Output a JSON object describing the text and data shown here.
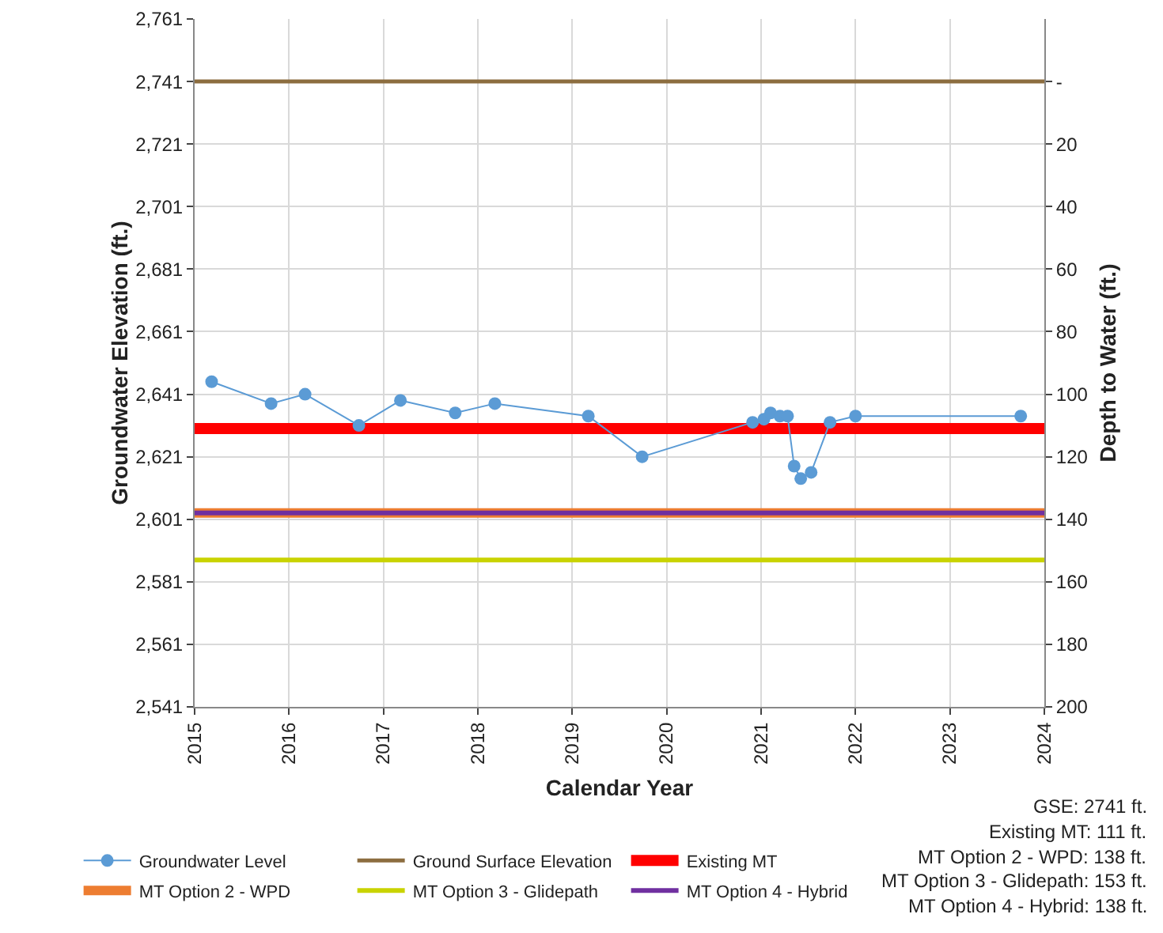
{
  "chart_data": {
    "type": "line",
    "xlabel": "Calendar Year",
    "ylabel": "Groundwater Elevation (ft.)",
    "y2label": "Depth to Water (ft.)",
    "series": [
      {
        "name": "Groundwater Level",
        "color": "#5b9bd5",
        "marker": "circle",
        "x": [
          2015.18,
          2015.81,
          2016.17,
          2016.74,
          2017.18,
          2017.76,
          2018.18,
          2019.17,
          2019.74,
          2020.91,
          2021.03,
          2021.1,
          2021.2,
          2021.28,
          2021.35,
          2021.42,
          2021.53,
          2021.73,
          2022.0,
          2023.75
        ],
        "values": [
          2645,
          2638,
          2641,
          2631,
          2639,
          2635,
          2638,
          2634,
          2621,
          2632,
          2633,
          2635,
          2634,
          2634,
          2618,
          2614,
          2616,
          2632,
          2634,
          2634
        ]
      },
      {
        "name": "Ground Surface Elevation",
        "color": "#8c6d3f",
        "marker": "none",
        "x": [
          2015,
          2024
        ],
        "values": [
          2741,
          2741
        ]
      },
      {
        "name": "Existing MT",
        "color": "#ff0000",
        "marker": "none",
        "x": [
          2015,
          2024
        ],
        "values": [
          2630,
          2630
        ]
      },
      {
        "name": "MT Option 2 - WPD",
        "color": "#ed7d31",
        "marker": "none",
        "x": [
          2015,
          2024
        ],
        "values": [
          2603,
          2603
        ]
      },
      {
        "name": "MT Option 3 - Glidepath",
        "color": "#c9d300",
        "marker": "none",
        "x": [
          2015,
          2024
        ],
        "values": [
          2588,
          2588
        ]
      },
      {
        "name": "MT Option 4 - Hybrid",
        "color": "#7030a0",
        "marker": "none",
        "x": [
          2015,
          2024
        ],
        "values": [
          2603,
          2603
        ]
      }
    ],
    "xlim": [
      2015,
      2024
    ],
    "xticks": [
      2015,
      2016,
      2017,
      2018,
      2019,
      2020,
      2021,
      2022,
      2023,
      2024
    ],
    "ylim": [
      2541,
      2761
    ],
    "yticks": [
      {
        "value": 2541,
        "label": "2,541"
      },
      {
        "value": 2561,
        "label": "2,561"
      },
      {
        "value": 2581,
        "label": "2,581"
      },
      {
        "value": 2601,
        "label": "2,601"
      },
      {
        "value": 2621,
        "label": "2,621"
      },
      {
        "value": 2641,
        "label": "2,641"
      },
      {
        "value": 2661,
        "label": "2,661"
      },
      {
        "value": 2681,
        "label": "2,681"
      },
      {
        "value": 2701,
        "label": "2,701"
      },
      {
        "value": 2721,
        "label": "2,721"
      },
      {
        "value": 2741,
        "label": "2,741"
      },
      {
        "value": 2761,
        "label": "2,761"
      }
    ],
    "y2lim": [
      200,
      -20
    ],
    "y2ticks": [
      200,
      180,
      160,
      140,
      120,
      100,
      80,
      60,
      40,
      20,
      {
        "value": 0,
        "label": "-"
      }
    ],
    "grid": true,
    "legend": "bottom",
    "line_style": "solid",
    "annotations": [
      "GSE: 2741 ft.",
      "Existing MT: 111 ft.",
      "MT Option 2 - WPD: 138 ft.",
      "MT Option 3 - Glidepath: 153 ft.",
      "MT Option 4 - Hybrid: 138 ft."
    ]
  }
}
